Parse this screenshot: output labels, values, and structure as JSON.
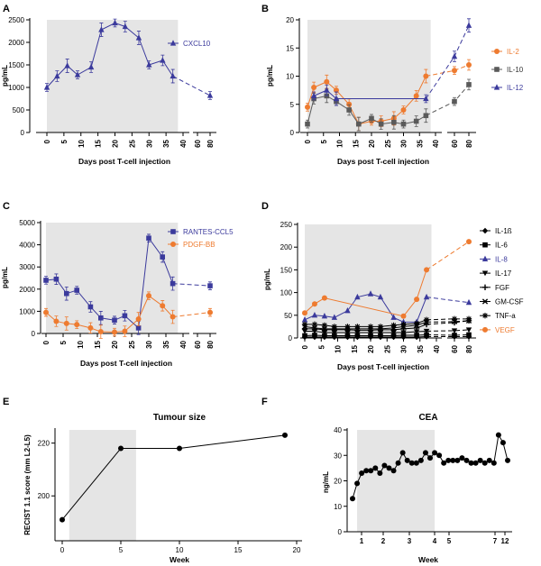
{
  "chart_data": [
    {
      "panel": "A",
      "type": "line",
      "title": "",
      "xlabel": "Days post T-cell injection",
      "ylabel": "pg/mL",
      "ylim": [
        0,
        2500
      ],
      "yticks": [
        0,
        500,
        1000,
        1500,
        2000,
        2500
      ],
      "xticks": [
        "0",
        "5",
        "10",
        "15",
        "20",
        "25",
        "30",
        "35",
        "40",
        "60",
        "80"
      ],
      "shaded_region": "days 0 to 38",
      "series": [
        {
          "name": "CXCL10",
          "color": "#3b3a9c",
          "marker": "triangle",
          "x": [
            0,
            3,
            6,
            9,
            13,
            16,
            20,
            23,
            27,
            30,
            34,
            37,
            80
          ],
          "y": [
            1000,
            1250,
            1480,
            1280,
            1450,
            2280,
            2430,
            2350,
            2100,
            1500,
            1600,
            1250,
            820
          ]
        }
      ]
    },
    {
      "panel": "B",
      "type": "line",
      "title": "",
      "xlabel": "Days post T-cell injection",
      "ylabel": "pg/mL",
      "ylim": [
        0,
        20
      ],
      "yticks": [
        0,
        5,
        10,
        15,
        20
      ],
      "xticks": [
        "0",
        "5",
        "10",
        "15",
        "20",
        "25",
        "30",
        "35",
        "40",
        "60",
        "80"
      ],
      "shaded_region": "days 0 to 38",
      "series": [
        {
          "name": "IL-2",
          "color": "#ee7b30",
          "marker": "circle",
          "x": [
            0,
            2,
            6,
            9,
            13,
            16,
            20,
            23,
            27,
            30,
            34,
            37,
            60,
            80
          ],
          "y": [
            4.5,
            8,
            9,
            7.5,
            5,
            1.5,
            2,
            2,
            2.5,
            4,
            6.5,
            10,
            11,
            12
          ]
        },
        {
          "name": "IL-10",
          "color": "#5a5a5a",
          "marker": "square",
          "x": [
            0,
            2,
            6,
            9,
            13,
            16,
            20,
            23,
            27,
            30,
            34,
            37,
            60,
            80
          ],
          "y": [
            1.5,
            6,
            6.5,
            5.5,
            4,
            1.5,
            2.5,
            1.5,
            1.8,
            1.5,
            2,
            3,
            5.5,
            8.5
          ]
        },
        {
          "name": "IL-12",
          "color": "#3b3a9c",
          "marker": "triangle",
          "x": [
            2,
            6,
            9,
            37,
            60,
            80
          ],
          "y": [
            6.5,
            7.5,
            6,
            6,
            13.5,
            19
          ]
        }
      ]
    },
    {
      "panel": "C",
      "type": "line",
      "title": "",
      "xlabel": "Days post T-cell injection",
      "ylabel": "pg/mL",
      "ylim": [
        0,
        5000
      ],
      "yticks": [
        0,
        1000,
        2000,
        3000,
        4000,
        5000
      ],
      "xticks": [
        "0",
        "5",
        "10",
        "15",
        "20",
        "25",
        "30",
        "35",
        "40",
        "60",
        "80"
      ],
      "shaded_region": "days 0 to 38",
      "series": [
        {
          "name": "RANTES-CCL5",
          "color": "#3b3a9c",
          "marker": "square",
          "x": [
            0,
            3,
            6,
            9,
            13,
            16,
            20,
            23,
            27,
            30,
            34,
            37,
            80
          ],
          "y": [
            2400,
            2450,
            1800,
            1950,
            1200,
            700,
            600,
            800,
            250,
            4300,
            3450,
            2250,
            2150
          ]
        },
        {
          "name": "PDGF-BB",
          "color": "#ee7b30",
          "marker": "circle",
          "x": [
            0,
            3,
            6,
            9,
            13,
            16,
            20,
            23,
            27,
            30,
            34,
            37,
            80
          ],
          "y": [
            950,
            550,
            450,
            400,
            250,
            80,
            60,
            100,
            650,
            1700,
            1250,
            750,
            950
          ]
        }
      ]
    },
    {
      "panel": "D",
      "type": "line",
      "title": "",
      "xlabel": "Days post T-cell injection",
      "ylabel": "pg/mL",
      "ylim": [
        0,
        250
      ],
      "yticks": [
        0,
        50,
        100,
        150,
        200,
        250
      ],
      "xticks": [
        "0",
        "5",
        "10",
        "15",
        "20",
        "25",
        "30",
        "35",
        "40",
        "60",
        "80"
      ],
      "shaded_region": "days 0 to 38",
      "series": [
        {
          "name": "IL-1ß",
          "color": "#000000",
          "marker": "diamond",
          "x": [
            0,
            3,
            6,
            9,
            13,
            16,
            20,
            23,
            27,
            30,
            34,
            37,
            60,
            80
          ],
          "y": [
            2,
            2,
            2,
            2,
            2,
            2,
            2,
            2,
            2,
            2,
            2,
            3,
            3,
            3
          ]
        },
        {
          "name": "IL-6",
          "color": "#000000",
          "marker": "square",
          "x": [
            0,
            3,
            6,
            9,
            13,
            16,
            20,
            23,
            27,
            30,
            34,
            37,
            60,
            80
          ],
          "y": [
            5,
            6,
            5,
            5,
            5,
            5,
            5,
            5,
            5,
            6,
            6,
            7,
            6,
            7
          ]
        },
        {
          "name": "IL-8",
          "color": "#3b3a9c",
          "marker": "triangle",
          "x": [
            0,
            3,
            6,
            9,
            13,
            16,
            20,
            23,
            27,
            30,
            34,
            37,
            80
          ],
          "y": [
            40,
            50,
            48,
            45,
            60,
            90,
            97,
            90,
            45,
            35,
            35,
            90,
            78
          ]
        },
        {
          "name": "IL-17",
          "color": "#000000",
          "marker": "triangle-down",
          "x": [
            0,
            3,
            6,
            9,
            13,
            16,
            20,
            23,
            27,
            30,
            34,
            37,
            60,
            80
          ],
          "y": [
            15,
            15,
            12,
            12,
            12,
            12,
            12,
            12,
            12,
            12,
            14,
            15,
            16,
            18
          ]
        },
        {
          "name": "FGF",
          "color": "#000000",
          "marker": "plus",
          "x": [
            0,
            3,
            6,
            9,
            13,
            16,
            20,
            23,
            27,
            30,
            34,
            37,
            60,
            80
          ],
          "y": [
            20,
            20,
            18,
            18,
            18,
            17,
            17,
            18,
            18,
            20,
            22,
            30,
            34,
            38
          ]
        },
        {
          "name": "GM-CSF",
          "color": "#000000",
          "marker": "x",
          "x": [
            0,
            3,
            6,
            9,
            13,
            16,
            20,
            23,
            27,
            30,
            34,
            37,
            60,
            80
          ],
          "y": [
            25,
            22,
            20,
            20,
            20,
            20,
            20,
            20,
            22,
            25,
            28,
            35,
            36,
            38
          ]
        },
        {
          "name": "TNF-a",
          "color": "#000000",
          "marker": "star",
          "x": [
            0,
            3,
            6,
            9,
            13,
            16,
            20,
            23,
            27,
            30,
            34,
            37,
            60,
            80
          ],
          "y": [
            30,
            30,
            28,
            25,
            25,
            25,
            25,
            25,
            28,
            30,
            32,
            40,
            42,
            42
          ]
        },
        {
          "name": "VEGF",
          "color": "#ee7b30",
          "marker": "circle",
          "x": [
            0,
            3,
            6,
            30,
            34,
            37,
            80
          ],
          "y": [
            55,
            75,
            88,
            48,
            85,
            150,
            212
          ]
        }
      ]
    },
    {
      "panel": "E",
      "type": "line",
      "title": "Tumour size",
      "xlabel": "Week",
      "ylabel": "RECIST 1.1 score (mm L2-L5)",
      "xlim": [
        -1,
        20
      ],
      "ylim": [
        183,
        225
      ],
      "xticks": [
        0,
        5,
        10,
        15,
        20
      ],
      "yticks": [
        200,
        220
      ],
      "shaded_region": "weeks 0.5 to 6.3",
      "series": [
        {
          "name": "Tumour size",
          "color": "#000000",
          "marker": "circle",
          "x": [
            0,
            5,
            10,
            19
          ],
          "y": [
            191,
            218,
            218,
            223
          ]
        }
      ]
    },
    {
      "panel": "F",
      "type": "line",
      "title": "CEA",
      "xlabel": "Week",
      "ylabel": "ng/mL",
      "ylim": [
        0,
        40
      ],
      "yticks": [
        0,
        10,
        20,
        30,
        40
      ],
      "xticks": [
        "1",
        "2",
        "3",
        "4",
        "5",
        "7",
        "12"
      ],
      "shaded_region": "weeks 0.6 to 5.5",
      "series": [
        {
          "name": "CEA",
          "color": "#000000",
          "marker": "circle",
          "x": [
            0.7,
            0.9,
            1.1,
            1.3,
            1.5,
            1.7,
            1.9,
            2.1,
            2.3,
            2.5,
            2.7,
            2.9,
            3.1,
            3.3,
            3.5,
            3.7,
            3.9,
            4.1,
            4.3,
            4.5,
            4.7,
            4.9,
            5.1,
            5.3,
            5.5,
            5.7,
            5.9,
            6.1,
            6.3,
            6.5,
            6.7,
            6.9,
            7.1,
            7.3,
            7.5
          ],
          "y": [
            13,
            19,
            23,
            24,
            24,
            25,
            23,
            26,
            25,
            24,
            27,
            31,
            28,
            27,
            27,
            28,
            31,
            29,
            31,
            30,
            27,
            28,
            28,
            28,
            29,
            28,
            27,
            27,
            28,
            27,
            28,
            27,
            38,
            35,
            28
          ]
        }
      ]
    }
  ]
}
